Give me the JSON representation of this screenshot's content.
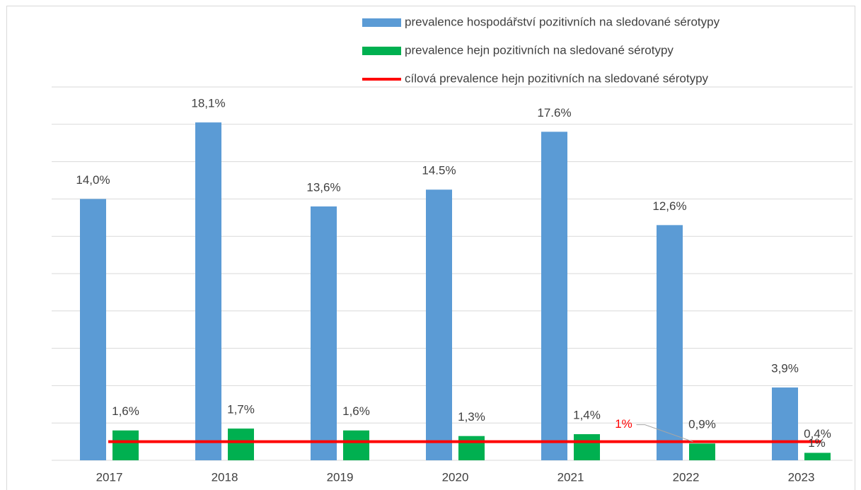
{
  "chart_data": {
    "type": "bar",
    "categories": [
      "2017",
      "2018",
      "2019",
      "2020",
      "2021",
      "2022",
      "2023"
    ],
    "series": [
      {
        "name": "prevalence hospodářství pozitivních na sledované sérotypy",
        "color": "#5b9bd5",
        "values": [
          14.0,
          18.1,
          13.6,
          14.5,
          17.6,
          12.6,
          3.9
        ],
        "value_labels": [
          "14,0%",
          "18,1%",
          "13,6%",
          "14.5%",
          "17.6%",
          "12,6%",
          "3,9%"
        ]
      },
      {
        "name": "prevalence hejn pozitivních na sledované sérotypy",
        "color": "#00b050",
        "values": [
          1.6,
          1.7,
          1.6,
          1.3,
          1.4,
          0.9,
          0.4
        ],
        "value_labels": [
          "1,6%",
          "1,7%",
          "1,6%",
          "1,3%",
          "1,4%",
          "0,9%",
          "0,4%"
        ]
      },
      {
        "name": "cílová prevalence hejn pozitivních na sledované sérotypy",
        "color": "#ff0000",
        "type": "line",
        "values": [
          1,
          1,
          1,
          1,
          1,
          1,
          1
        ],
        "value_labels": [
          null,
          null,
          null,
          null,
          null,
          "1%",
          "1%"
        ],
        "value_label_colors": [
          null,
          null,
          null,
          null,
          null,
          "#ff0000",
          "#404040"
        ]
      }
    ],
    "ylim": [
      0,
      20
    ],
    "yticks": [
      0,
      2,
      4,
      6,
      8,
      10,
      12,
      14,
      16,
      18,
      20
    ],
    "grid": true,
    "legend": "top"
  }
}
